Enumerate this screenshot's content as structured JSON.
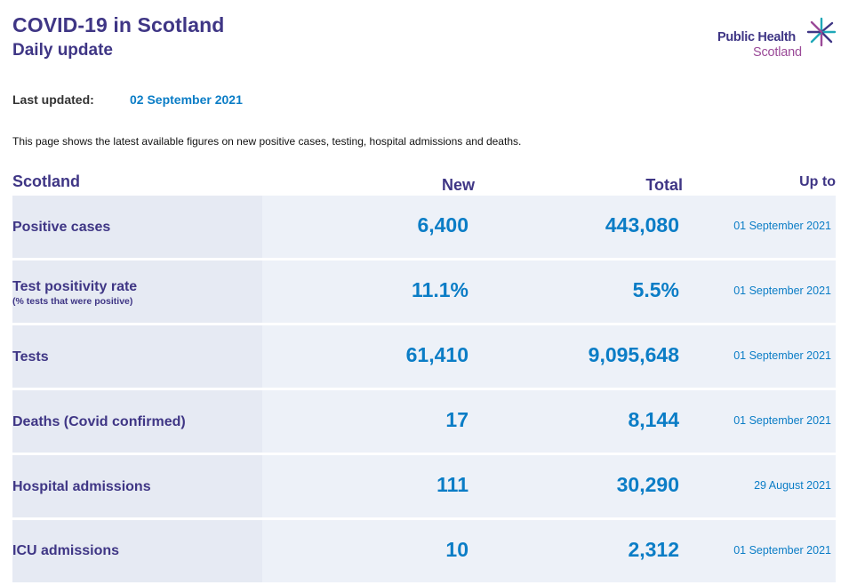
{
  "header": {
    "title": "COVID-19 in Scotland",
    "subtitle": "Daily update"
  },
  "logo": {
    "line1": "Public Health",
    "line2": "Scotland",
    "icon": "star-burst-icon",
    "colors": {
      "primary": "#3f3685",
      "secondary": "#9b4a98",
      "accent": "#1fa8b8"
    }
  },
  "last_updated": {
    "label": "Last updated:",
    "value": "02 September 2021"
  },
  "description": "This page shows the latest available figures on new positive cases, testing, hospital admissions and deaths.",
  "table": {
    "headers": {
      "area": "Scotland",
      "new": "New",
      "total": "Total",
      "up_to": "Up to"
    },
    "rows": [
      {
        "label": "Positive cases",
        "sublabel": "",
        "new": "6,400",
        "total": "443,080",
        "up_to": "01 September 2021"
      },
      {
        "label": "Test positivity rate",
        "sublabel": "(% tests that were positive)",
        "new": "11.1%",
        "total": "5.5%",
        "up_to": "01 September 2021"
      },
      {
        "label": "Tests",
        "sublabel": "",
        "new": "61,410",
        "total": "9,095,648",
        "up_to": "01 September 2021"
      },
      {
        "label": "Deaths (Covid confirmed)",
        "sublabel": "",
        "new": "17",
        "total": "8,144",
        "up_to": "01 September 2021"
      },
      {
        "label": "Hospital admissions",
        "sublabel": "",
        "new": "111",
        "total": "30,290",
        "up_to": "29 August 2021"
      },
      {
        "label": "ICU admissions",
        "sublabel": "",
        "new": "10",
        "total": "2,312",
        "up_to": "01 September 2021"
      }
    ]
  },
  "colors": {
    "heading": "#3f3685",
    "value": "#0b7dc6",
    "row_label_bg": "#e6eaf3",
    "row_bg": "#edf1f8"
  }
}
